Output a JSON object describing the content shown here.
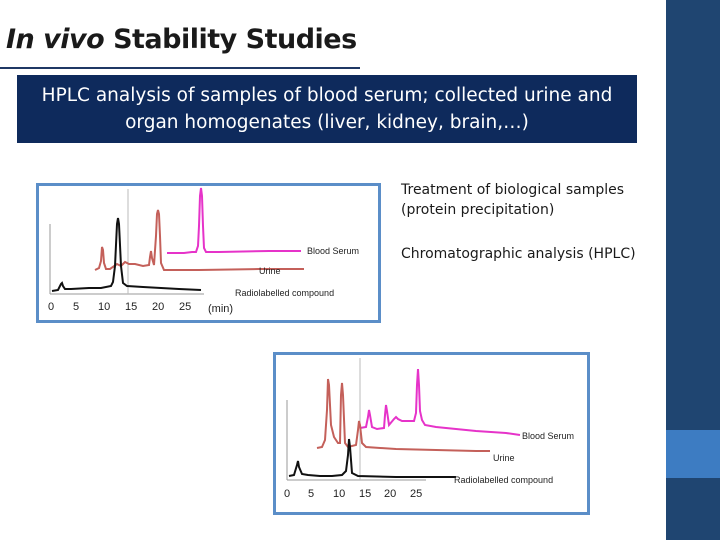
{
  "slide": {
    "title_italic": "In vivo",
    "title_rest": " Stability Studies",
    "banner_text": "HPLC analysis of samples of blood serum; collected urine and organ homogenates (liver, kidney, brain,…)",
    "bullet_1": "Treatment of biological samples (protein precipitation)",
    "bullet_2": "Chromatographic analysis (HPLC)"
  },
  "colors": {
    "accent_dark": "#1f4571",
    "accent_light": "#3d7cc2",
    "banner_bg": "#0e2a5c",
    "chart_border": "#5b8ec8",
    "blood_serum": "#e633c9",
    "urine": "#c4605a",
    "radiolabelled": "#111111"
  },
  "chart_data": [
    {
      "type": "line",
      "xlabel": "(min)",
      "x_ticks": [
        "0",
        "5",
        "10",
        "15",
        "20",
        "25"
      ],
      "xlim": [
        0,
        28
      ],
      "series": [
        {
          "name": "Blood Serum",
          "peaks_min": [
            27
          ]
        },
        {
          "name": "Urine",
          "peaks_min": [
            8.5,
            14.5,
            19.5,
            20.5
          ]
        },
        {
          "name": "Radiolabelled compound",
          "peaks_min": [
            4,
            12.5
          ]
        }
      ]
    },
    {
      "type": "line",
      "xlabel": "",
      "x_ticks": [
        "0",
        "5",
        "10",
        "15",
        "20",
        "25"
      ],
      "xlim": [
        0,
        28
      ],
      "series": [
        {
          "name": "Blood Serum",
          "peaks_min": [
            12.5,
            16.5,
            20.5,
            25
          ]
        },
        {
          "name": "Urine",
          "peaks_min": [
            7.5,
            10.5,
            12.5
          ]
        },
        {
          "name": "Radiolabelled compound",
          "peaks_min": [
            3.5,
            11.5
          ]
        }
      ]
    }
  ]
}
